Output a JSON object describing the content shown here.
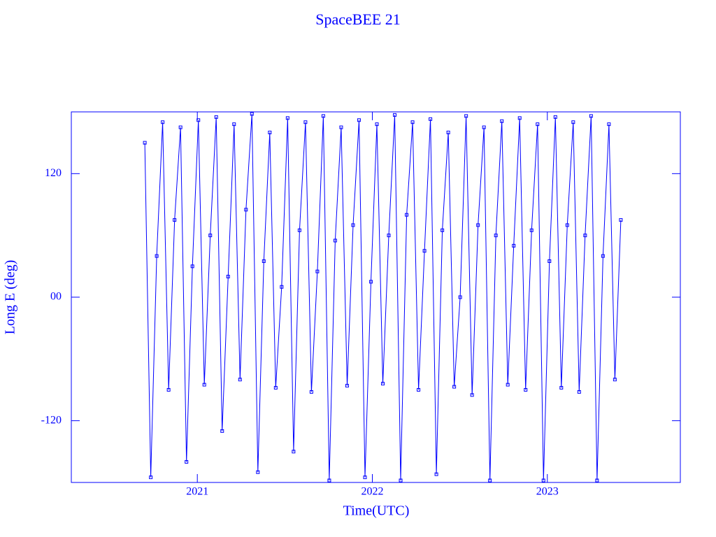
{
  "chart_data": {
    "type": "line",
    "title": "SpaceBEE 21",
    "x_label": "Time(UTC)",
    "y_label": "Long E (deg)",
    "x": [
      2020.7,
      2020.734,
      2020.768,
      2020.802,
      2020.836,
      2020.87,
      2020.904,
      2020.938,
      2020.972,
      2021.006,
      2021.04,
      2021.074,
      2021.108,
      2021.142,
      2021.176,
      2021.21,
      2021.244,
      2021.278,
      2021.312,
      2021.346,
      2021.38,
      2021.414,
      2021.448,
      2021.482,
      2021.516,
      2021.55,
      2021.584,
      2021.618,
      2021.652,
      2021.686,
      2021.72,
      2021.754,
      2021.788,
      2021.822,
      2021.856,
      2021.89,
      2021.924,
      2021.958,
      2021.992,
      2022.026,
      2022.06,
      2022.094,
      2022.128,
      2022.162,
      2022.196,
      2022.23,
      2022.264,
      2022.298,
      2022.332,
      2022.366,
      2022.4,
      2022.434,
      2022.468,
      2022.502,
      2022.536,
      2022.57,
      2022.604,
      2022.638,
      2022.672,
      2022.706,
      2022.74,
      2022.774,
      2022.808,
      2022.842,
      2022.876,
      2022.91,
      2022.944,
      2022.978,
      2023.012,
      2023.046,
      2023.08,
      2023.114,
      2023.148,
      2023.182,
      2023.216,
      2023.25,
      2023.284,
      2023.318,
      2023.352,
      2023.386,
      2023.42
    ],
    "series": [
      {
        "color": "#0000ff",
        "values": [
          150,
          -175,
          40,
          170,
          -90,
          75,
          165,
          -160,
          30,
          172,
          -85,
          60,
          175,
          -130,
          20,
          168,
          -80,
          85,
          178,
          -170,
          35,
          160,
          -88,
          10,
          174,
          -150,
          65,
          170,
          -92,
          25,
          176,
          -178,
          55,
          165,
          -86,
          70,
          172,
          -175,
          15,
          168,
          -84,
          60,
          177,
          -178,
          80,
          170,
          -90,
          45,
          173,
          -172,
          65,
          160,
          -87,
          0,
          176,
          -95,
          70,
          165,
          -178,
          60,
          171,
          -85,
          50,
          174,
          -90,
          65,
          168,
          -178,
          35,
          175,
          -88,
          70,
          170,
          -92,
          60,
          176,
          -178,
          40,
          168,
          -80,
          75
        ]
      }
    ],
    "xlim": [
      2020.28,
      2023.76
    ],
    "xticks": [
      2021,
      2022,
      2023
    ],
    "ylim": [
      -180,
      180
    ],
    "yticks": [
      -120,
      {
        "value": 0,
        "label": "00"
      },
      120
    ],
    "axis_color": "#0000ff"
  }
}
